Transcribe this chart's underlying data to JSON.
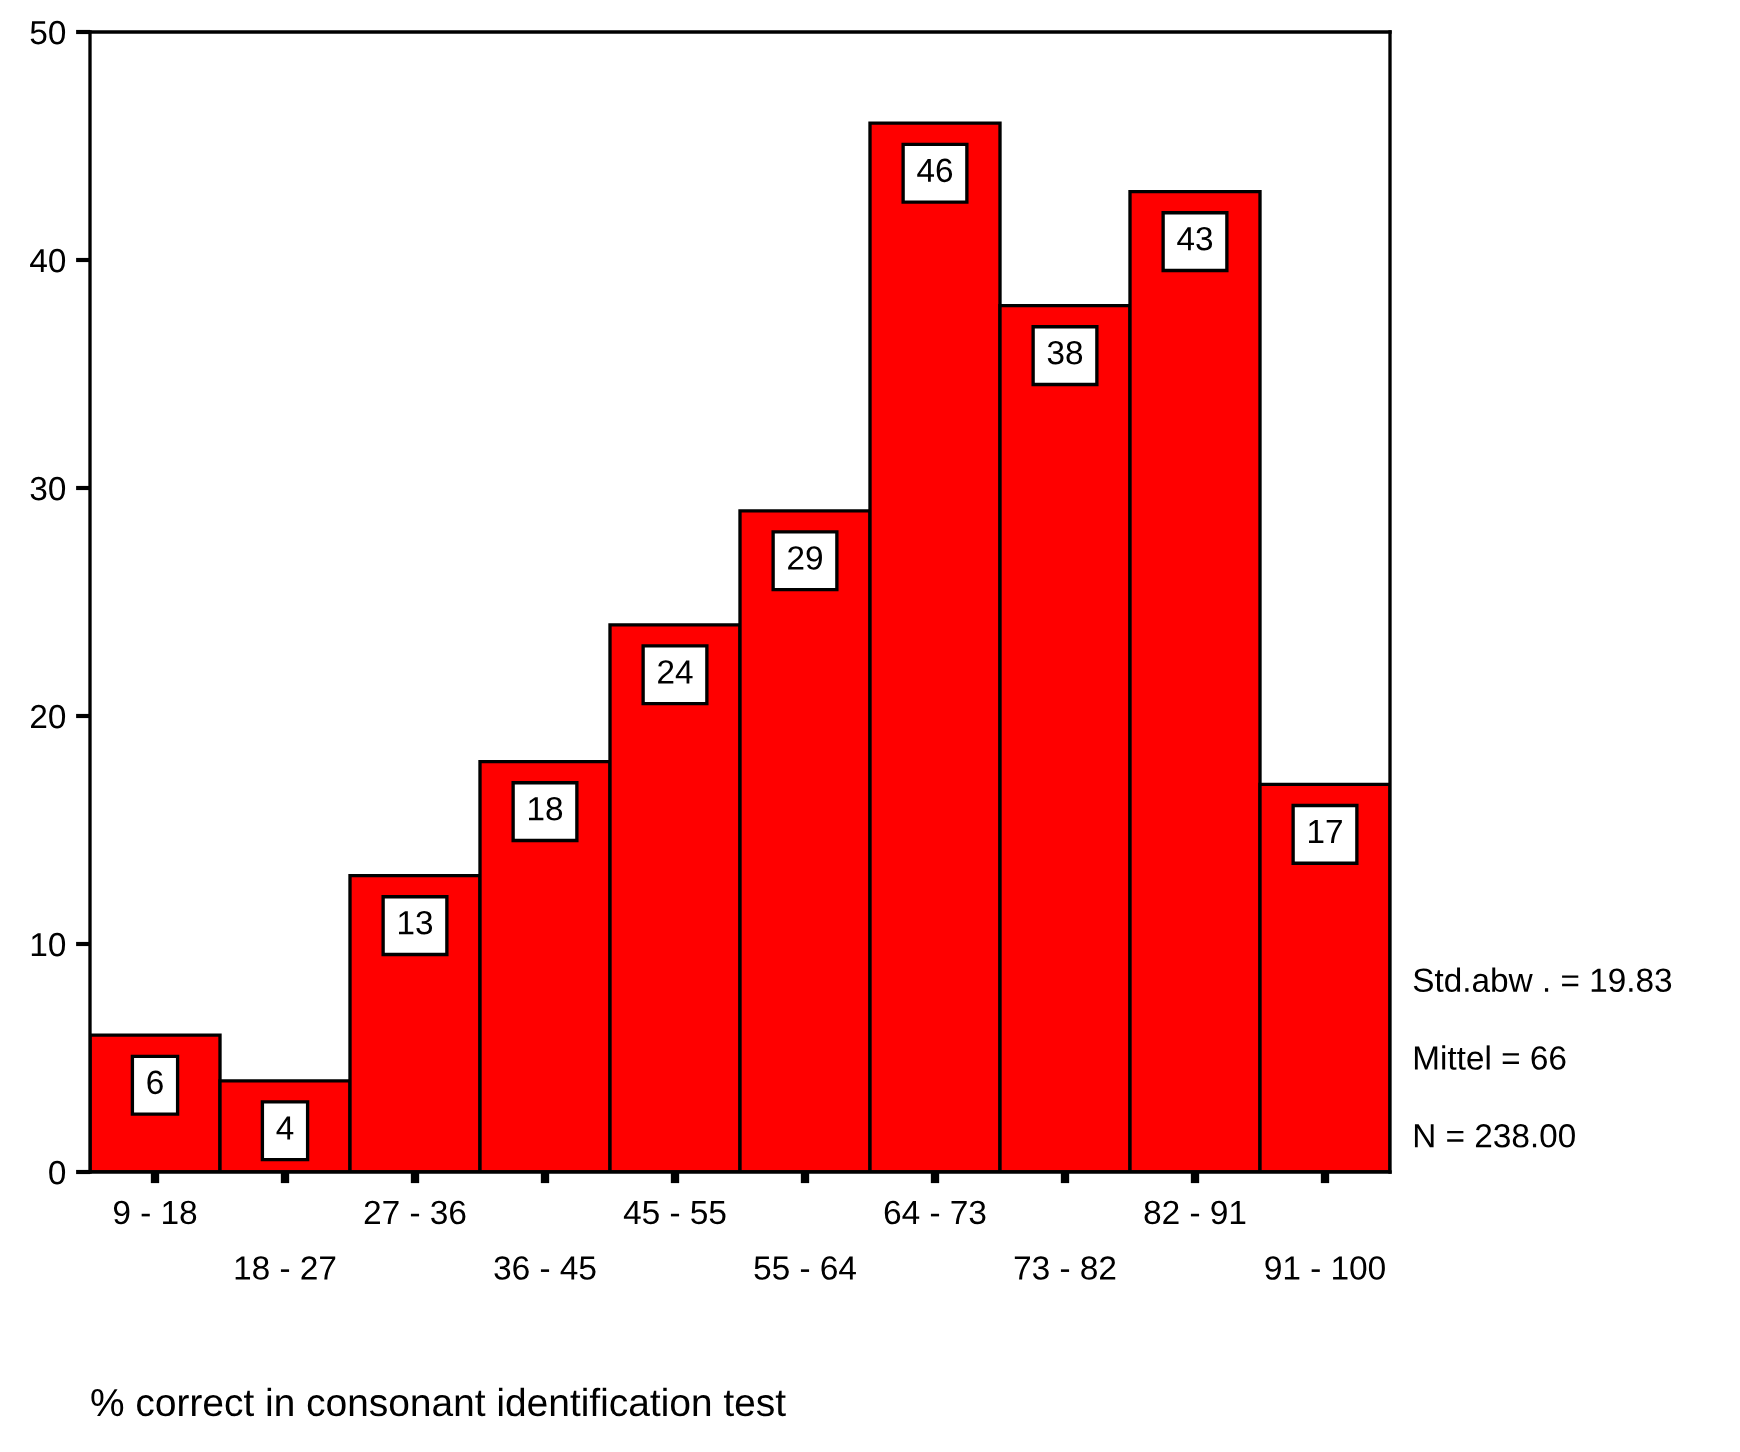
{
  "chart_data": {
    "type": "bar",
    "categories": [
      "9 - 18",
      "18 - 27",
      "27 - 36",
      "36 - 45",
      "45 - 55",
      "55 - 64",
      "64 - 73",
      "73 - 82",
      "82 - 91",
      "91 - 100"
    ],
    "values": [
      6,
      4,
      13,
      18,
      24,
      29,
      46,
      38,
      43,
      17
    ],
    "color": "#ff0000",
    "xlabel": "% correct in consonant identification test",
    "ylim": [
      0,
      50
    ],
    "yticks": [
      0,
      10,
      20,
      30,
      40,
      50
    ],
    "grid": false,
    "data_labels": true,
    "annotations": [
      "Std.abw . = 19.83",
      "Mittel = 66",
      "N = 238.00"
    ]
  }
}
